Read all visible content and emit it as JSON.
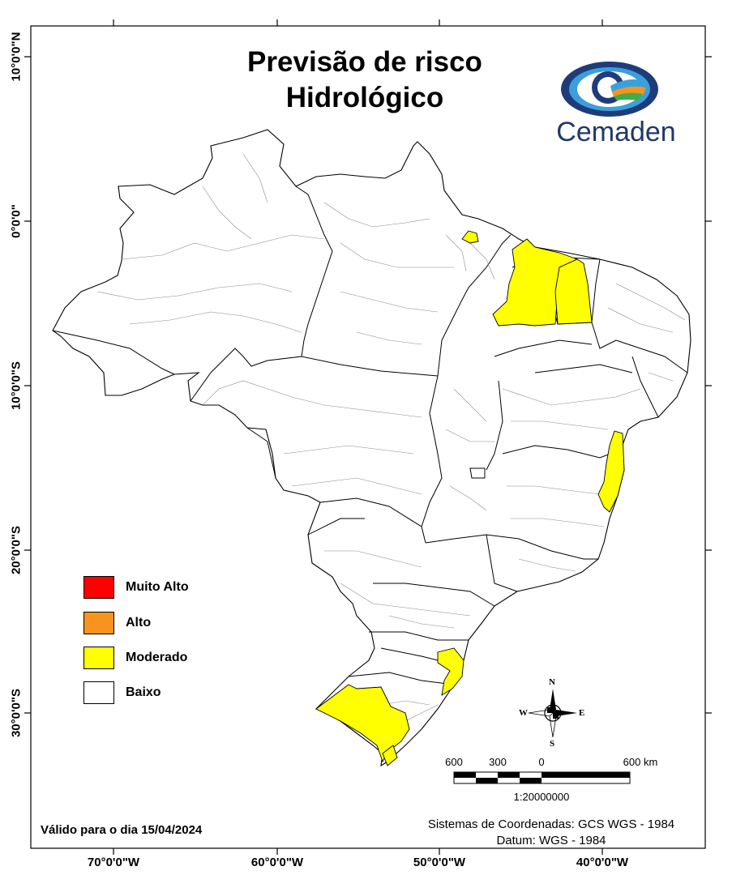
{
  "title_line1": "Previsão de risco",
  "title_line2": "Hidrológico",
  "logo": {
    "text": "Cemaden",
    "icon": "cemaden-eye-logo"
  },
  "legend": [
    {
      "label": "Muito Alto",
      "color": "#ff0000"
    },
    {
      "label": "Alto",
      "color": "#f7941d"
    },
    {
      "label": "Moderado",
      "color": "#ffff00"
    },
    {
      "label": "Baixo",
      "color": "#ffffff"
    }
  ],
  "valid_text": "Válido para o dia 15/04/2024",
  "coord_system_line1": "Sistemas de Coordenadas: GCS WGS - 1984",
  "coord_system_line2": "Datum: WGS - 1984",
  "longitude_labels": [
    "70°0'0\"W",
    "60°0'0\"W",
    "50°0'0\"W",
    "40°0'0\"W"
  ],
  "latitude_labels": [
    "10°0'0\"N",
    "0°0'0\"",
    "10°0'0\"S",
    "20°0'0\"S",
    "30°0'0\"S"
  ],
  "scale_bar": {
    "labels": [
      "600",
      "300",
      "0",
      "600 km"
    ],
    "ratio": "1:20000000"
  },
  "compass": {
    "north": "N",
    "south": "S",
    "east": "E",
    "west": "W"
  },
  "map": {
    "region": "Brasil",
    "moderate_color": "#ffff00",
    "low_color": "#ffffff"
  }
}
